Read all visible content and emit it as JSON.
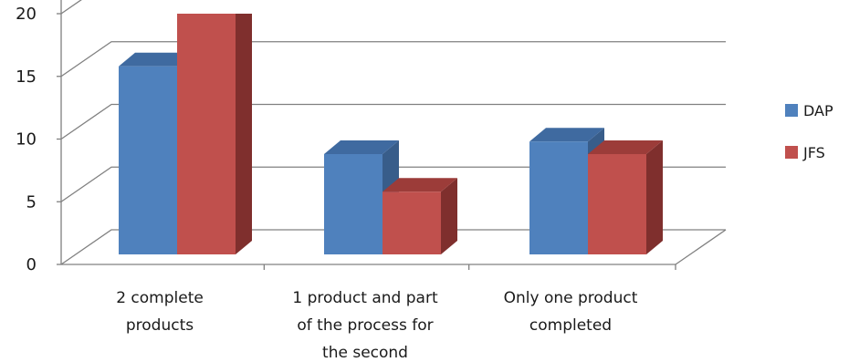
{
  "chart_data": {
    "type": "bar",
    "title": "",
    "xlabel": "",
    "ylabel": "",
    "categories": [
      [
        "2 complete",
        "products"
      ],
      [
        "1 product and part",
        "of the process for",
        "the second"
      ],
      [
        "Only one product",
        "completed"
      ]
    ],
    "series": [
      {
        "name": "DAP",
        "values": [
          15,
          8,
          9
        ],
        "color": "#4f81bd",
        "side": "#385d8a",
        "top": "#3f6aa0"
      },
      {
        "name": "JFS",
        "values": [
          20,
          5,
          8
        ],
        "color": "#c0504d",
        "side": "#7f2f2d",
        "top": "#9c3c39"
      }
    ],
    "yticks": [
      0,
      5,
      10,
      15,
      20
    ],
    "ylim": [
      0,
      20
    ],
    "grid": true,
    "legend_position": "right",
    "style": "3d-clustered-column"
  }
}
